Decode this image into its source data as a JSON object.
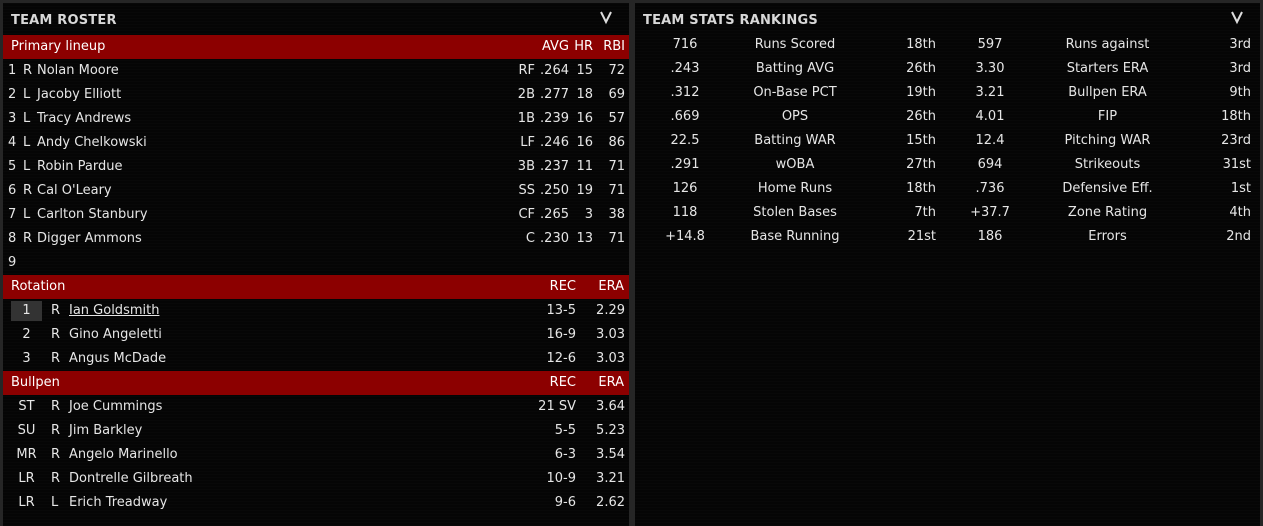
{
  "roster": {
    "title": "TEAM ROSTER",
    "lineup": {
      "title": "Primary lineup",
      "headers": {
        "avg": "AVG",
        "hr": "HR",
        "rbi": "RBI"
      },
      "rows": [
        {
          "n": "1",
          "hand": "R",
          "name": "Nolan Moore",
          "pos": "RF",
          "avg": ".264",
          "hr": "15",
          "rbi": "72"
        },
        {
          "n": "2",
          "hand": "L",
          "name": "Jacoby Elliott",
          "pos": "2B",
          "avg": ".277",
          "hr": "18",
          "rbi": "69"
        },
        {
          "n": "3",
          "hand": "L",
          "name": "Tracy Andrews",
          "pos": "1B",
          "avg": ".239",
          "hr": "16",
          "rbi": "57"
        },
        {
          "n": "4",
          "hand": "L",
          "name": "Andy Chelkowski",
          "pos": "LF",
          "avg": ".246",
          "hr": "16",
          "rbi": "86"
        },
        {
          "n": "5",
          "hand": "L",
          "name": "Robin Pardue",
          "pos": "3B",
          "avg": ".237",
          "hr": "11",
          "rbi": "71"
        },
        {
          "n": "6",
          "hand": "R",
          "name": "Cal O'Leary",
          "pos": "SS",
          "avg": ".250",
          "hr": "19",
          "rbi": "71"
        },
        {
          "n": "7",
          "hand": "L",
          "name": "Carlton Stanbury",
          "pos": "CF",
          "avg": ".265",
          "hr": "3",
          "rbi": "38"
        },
        {
          "n": "8",
          "hand": "R",
          "name": "Digger Ammons",
          "pos": "C",
          "avg": ".230",
          "hr": "13",
          "rbi": "71"
        },
        {
          "n": "9",
          "hand": "",
          "name": "",
          "pos": "",
          "avg": "",
          "hr": "",
          "rbi": ""
        }
      ]
    },
    "rotation": {
      "title": "Rotation",
      "headers": {
        "rec": "REC",
        "era": "ERA"
      },
      "rows": [
        {
          "n": "1",
          "hand": "R",
          "name": "Ian Goldsmith",
          "rec": "13-5",
          "era": "2.29"
        },
        {
          "n": "2",
          "hand": "R",
          "name": "Gino Angeletti",
          "rec": "16-9",
          "era": "3.03"
        },
        {
          "n": "3",
          "hand": "R",
          "name": "Angus McDade",
          "rec": "12-6",
          "era": "3.03"
        }
      ]
    },
    "bullpen": {
      "title": "Bullpen",
      "headers": {
        "rec": "REC",
        "era": "ERA"
      },
      "rows": [
        {
          "role": "ST",
          "hand": "R",
          "name": "Joe Cummings",
          "rec": "21 SV",
          "era": "3.64"
        },
        {
          "role": "SU",
          "hand": "R",
          "name": "Jim Barkley",
          "rec": "5-5",
          "era": "5.23"
        },
        {
          "role": "MR",
          "hand": "R",
          "name": "Angelo Marinello",
          "rec": "6-3",
          "era": "3.54"
        },
        {
          "role": "LR",
          "hand": "R",
          "name": "Dontrelle Gilbreath",
          "rec": "10-9",
          "era": "3.21"
        },
        {
          "role": "LR",
          "hand": "L",
          "name": "Erich Treadway",
          "rec": "9-6",
          "era": "2.62"
        }
      ]
    }
  },
  "stats": {
    "title": "TEAM STATS RANKINGS",
    "rows": [
      {
        "v1": "716",
        "l1": "Runs Scored",
        "r1": "18th",
        "v2": "597",
        "l2": "Runs against",
        "r2": "3rd"
      },
      {
        "v1": ".243",
        "l1": "Batting AVG",
        "r1": "26th",
        "v2": "3.30",
        "l2": "Starters ERA",
        "r2": "3rd"
      },
      {
        "v1": ".312",
        "l1": "On-Base PCT",
        "r1": "19th",
        "v2": "3.21",
        "l2": "Bullpen ERA",
        "r2": "9th"
      },
      {
        "v1": ".669",
        "l1": "OPS",
        "r1": "26th",
        "v2": "4.01",
        "l2": "FIP",
        "r2": "18th"
      },
      {
        "v1": "22.5",
        "l1": "Batting WAR",
        "r1": "15th",
        "v2": "12.4",
        "l2": "Pitching WAR",
        "r2": "23rd"
      },
      {
        "v1": ".291",
        "l1": "wOBA",
        "r1": "27th",
        "v2": "694",
        "l2": "Strikeouts",
        "r2": "31st"
      },
      {
        "v1": "126",
        "l1": "Home Runs",
        "r1": "18th",
        "v2": ".736",
        "l2": "Defensive Eff.",
        "r2": "1st"
      },
      {
        "v1": "118",
        "l1": "Stolen Bases",
        "r1": "7th",
        "v2": "+37.7",
        "l2": "Zone Rating",
        "r2": "4th"
      },
      {
        "v1": "+14.8",
        "l1": "Base Running",
        "r1": "21st",
        "v2": "186",
        "l2": "Errors",
        "r2": "2nd"
      }
    ]
  },
  "colors": {
    "section_bar": "#8c0000",
    "background": "#050505"
  }
}
